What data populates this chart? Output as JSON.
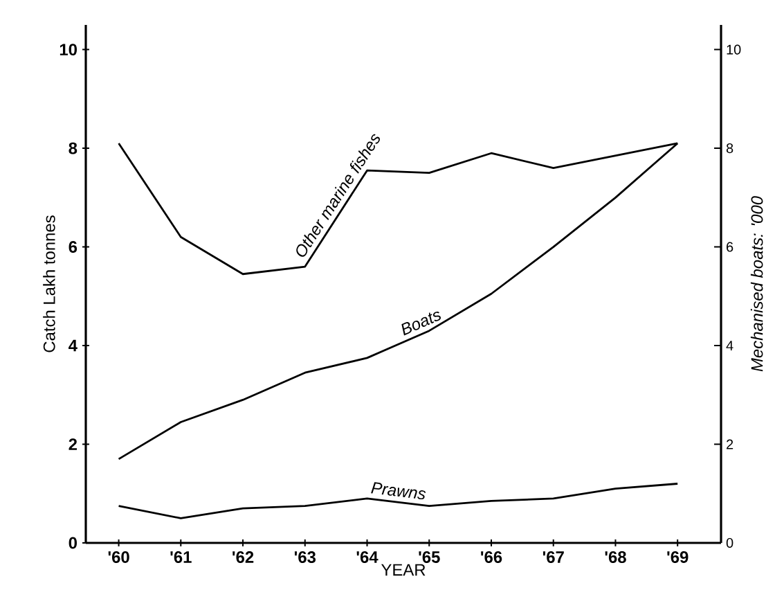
{
  "chart_data": {
    "type": "line",
    "xlabel": "YEAR",
    "ylabel": "Catch Lakh tonnes",
    "y2label": "Mechanised boats: '000",
    "categories": [
      "'60",
      "'61",
      "'62",
      "'63",
      "'64",
      "'65",
      "'66",
      "'67",
      "'68",
      "'69"
    ],
    "series": [
      {
        "name": "Other marine fishes",
        "color": "#000000",
        "values": [
          8.1,
          6.2,
          5.45,
          5.6,
          7.55,
          7.5,
          7.9,
          7.6,
          7.85,
          8.1
        ]
      },
      {
        "name": "Boats",
        "color": "#000000",
        "axis": "y2",
        "values": [
          1.7,
          2.45,
          2.9,
          3.45,
          3.75,
          4.3,
          5.05,
          6.0,
          7.0,
          8.1
        ]
      },
      {
        "name": "Prawns",
        "color": "#000000",
        "values": [
          0.75,
          0.5,
          0.7,
          0.75,
          0.9,
          0.75,
          0.85,
          0.9,
          1.1,
          1.2
        ]
      }
    ],
    "ylim": [
      0,
      10.5
    ],
    "yticks": [
      0,
      2,
      4,
      6,
      8,
      10
    ],
    "y2lim": [
      0,
      10.5
    ],
    "y2ticks": [
      0,
      2,
      4,
      6,
      8,
      10
    ],
    "grid": false,
    "legend": false,
    "marker": "none",
    "line_style": "solid"
  }
}
